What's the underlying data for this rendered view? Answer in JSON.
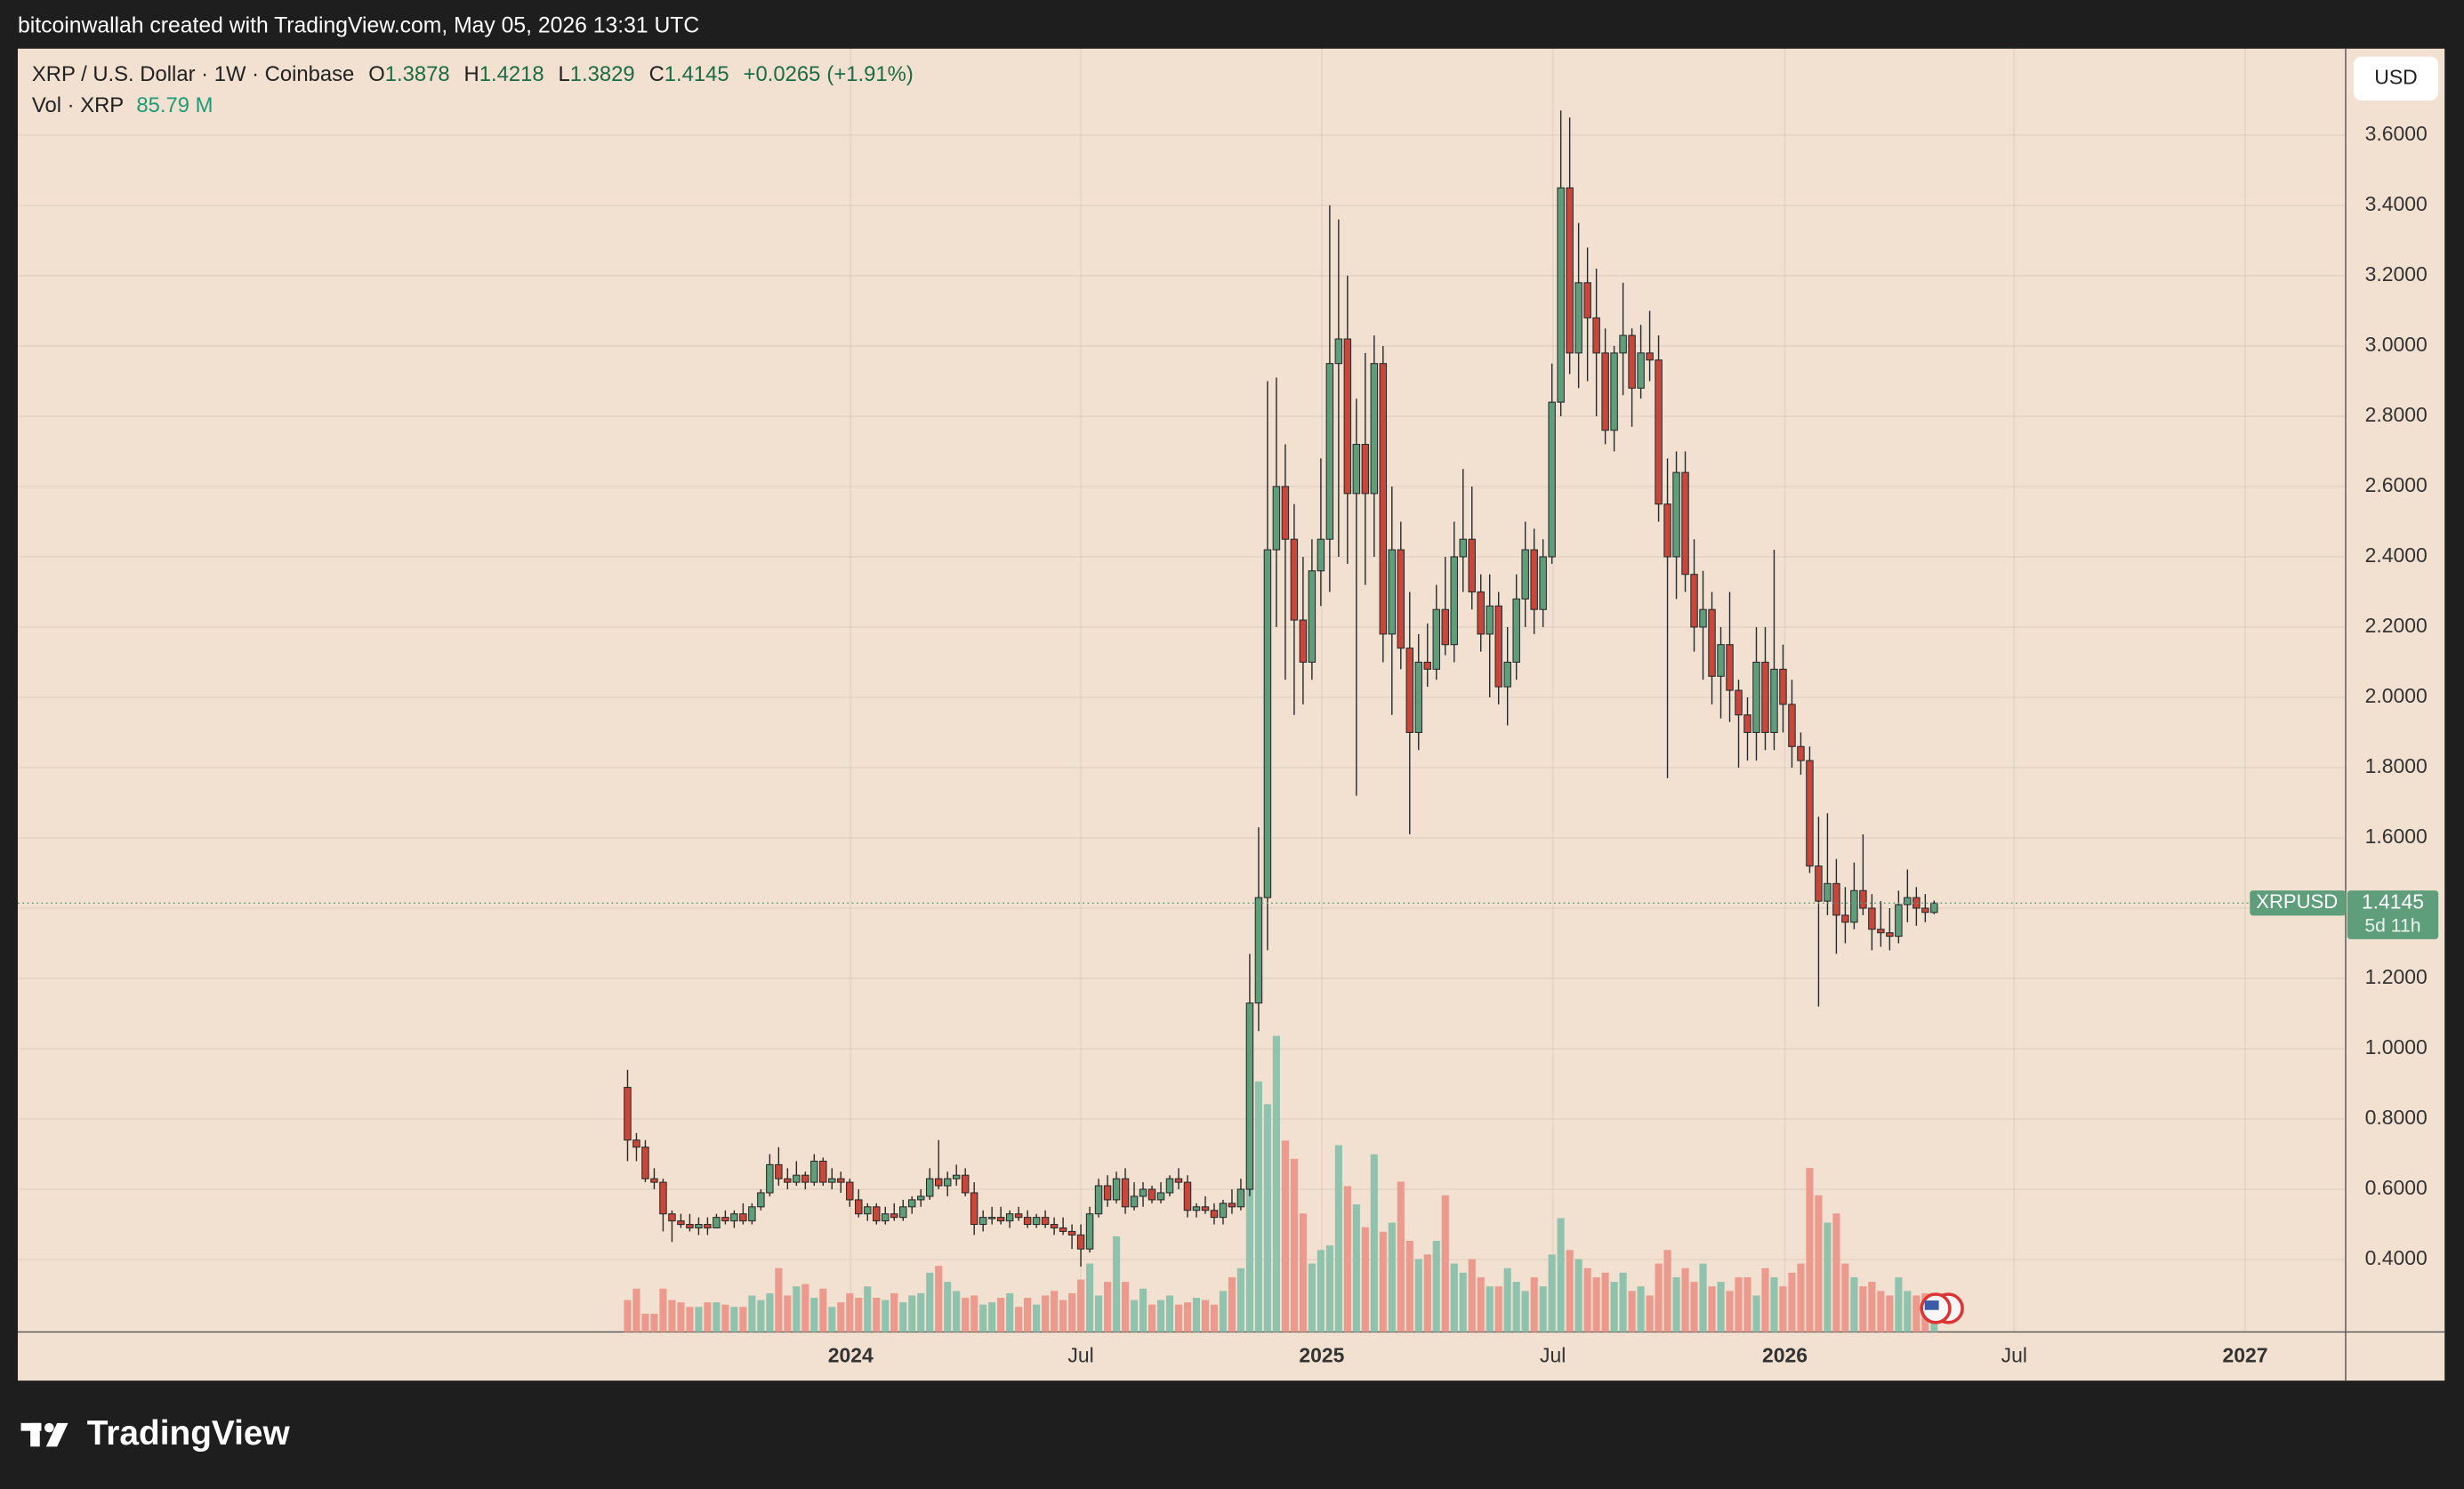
{
  "header": {
    "credit": "bitcoinwallah created with TradingView.com, May 05, 2026 13:31 UTC"
  },
  "footer": {
    "brand": "TradingView"
  },
  "chart_data": {
    "type": "candlestick",
    "title": "XRP / U.S. Dollar · 1W · Coinbase",
    "ohlc_labels": [
      "O",
      "H",
      "L",
      "C"
    ],
    "change": "+0.0265",
    "change_percent": "(+1.91%)",
    "volume_title": "Vol · XRP",
    "volume_last": "85.79 M",
    "symbol": "XRPUSD",
    "countdown": "5d 11h",
    "currency": "USD",
    "ohlc": [
      [
        0.89,
        0.94,
        0.68,
        0.74
      ],
      [
        0.74,
        0.76,
        0.68,
        0.72
      ],
      [
        0.72,
        0.74,
        0.62,
        0.63
      ],
      [
        0.63,
        0.66,
        0.6,
        0.62
      ],
      [
        0.62,
        0.63,
        0.48,
        0.53
      ],
      [
        0.53,
        0.54,
        0.45,
        0.51
      ],
      [
        0.51,
        0.53,
        0.49,
        0.5
      ],
      [
        0.5,
        0.53,
        0.48,
        0.49
      ],
      [
        0.49,
        0.52,
        0.47,
        0.5
      ],
      [
        0.5,
        0.52,
        0.47,
        0.49
      ],
      [
        0.49,
        0.53,
        0.49,
        0.52
      ],
      [
        0.52,
        0.54,
        0.5,
        0.51
      ],
      [
        0.51,
        0.54,
        0.49,
        0.53
      ],
      [
        0.53,
        0.56,
        0.5,
        0.51
      ],
      [
        0.51,
        0.56,
        0.5,
        0.55
      ],
      [
        0.55,
        0.6,
        0.54,
        0.59
      ],
      [
        0.59,
        0.7,
        0.58,
        0.67
      ],
      [
        0.67,
        0.72,
        0.61,
        0.63
      ],
      [
        0.63,
        0.66,
        0.6,
        0.62
      ],
      [
        0.62,
        0.68,
        0.61,
        0.64
      ],
      [
        0.64,
        0.65,
        0.6,
        0.62
      ],
      [
        0.62,
        0.7,
        0.61,
        0.68
      ],
      [
        0.68,
        0.69,
        0.61,
        0.62
      ],
      [
        0.62,
        0.66,
        0.6,
        0.63
      ],
      [
        0.63,
        0.65,
        0.59,
        0.62
      ],
      [
        0.62,
        0.63,
        0.55,
        0.57
      ],
      [
        0.57,
        0.6,
        0.52,
        0.53
      ],
      [
        0.53,
        0.56,
        0.51,
        0.55
      ],
      [
        0.55,
        0.56,
        0.5,
        0.51
      ],
      [
        0.51,
        0.55,
        0.5,
        0.53
      ],
      [
        0.53,
        0.56,
        0.51,
        0.52
      ],
      [
        0.52,
        0.57,
        0.51,
        0.55
      ],
      [
        0.55,
        0.58,
        0.53,
        0.57
      ],
      [
        0.57,
        0.6,
        0.55,
        0.58
      ],
      [
        0.58,
        0.66,
        0.57,
        0.63
      ],
      [
        0.63,
        0.74,
        0.6,
        0.61
      ],
      [
        0.61,
        0.65,
        0.58,
        0.63
      ],
      [
        0.63,
        0.67,
        0.61,
        0.64
      ],
      [
        0.64,
        0.66,
        0.58,
        0.59
      ],
      [
        0.59,
        0.62,
        0.47,
        0.5
      ],
      [
        0.5,
        0.54,
        0.48,
        0.52
      ],
      [
        0.52,
        0.55,
        0.5,
        0.52
      ],
      [
        0.52,
        0.55,
        0.5,
        0.51
      ],
      [
        0.51,
        0.54,
        0.49,
        0.53
      ],
      [
        0.53,
        0.55,
        0.51,
        0.52
      ],
      [
        0.52,
        0.54,
        0.49,
        0.5
      ],
      [
        0.5,
        0.53,
        0.49,
        0.52
      ],
      [
        0.52,
        0.54,
        0.49,
        0.5
      ],
      [
        0.5,
        0.52,
        0.47,
        0.49
      ],
      [
        0.49,
        0.52,
        0.47,
        0.48
      ],
      [
        0.48,
        0.5,
        0.43,
        0.47
      ],
      [
        0.47,
        0.5,
        0.38,
        0.43
      ],
      [
        0.43,
        0.55,
        0.42,
        0.53
      ],
      [
        0.53,
        0.63,
        0.52,
        0.61
      ],
      [
        0.61,
        0.64,
        0.55,
        0.57
      ],
      [
        0.57,
        0.65,
        0.56,
        0.63
      ],
      [
        0.63,
        0.66,
        0.53,
        0.55
      ],
      [
        0.55,
        0.62,
        0.54,
        0.58
      ],
      [
        0.58,
        0.62,
        0.55,
        0.6
      ],
      [
        0.6,
        0.61,
        0.56,
        0.57
      ],
      [
        0.57,
        0.62,
        0.56,
        0.59
      ],
      [
        0.59,
        0.64,
        0.58,
        0.63
      ],
      [
        0.63,
        0.66,
        0.6,
        0.62
      ],
      [
        0.62,
        0.64,
        0.52,
        0.54
      ],
      [
        0.54,
        0.56,
        0.52,
        0.55
      ],
      [
        0.55,
        0.58,
        0.53,
        0.54
      ],
      [
        0.54,
        0.56,
        0.5,
        0.52
      ],
      [
        0.52,
        0.57,
        0.5,
        0.56
      ],
      [
        0.56,
        0.6,
        0.53,
        0.55
      ],
      [
        0.55,
        0.63,
        0.54,
        0.6
      ],
      [
        0.6,
        1.27,
        0.58,
        1.13
      ],
      [
        1.13,
        1.63,
        1.05,
        1.43
      ],
      [
        1.43,
        2.9,
        1.28,
        2.42
      ],
      [
        2.42,
        2.91,
        2.2,
        2.6
      ],
      [
        2.6,
        2.72,
        2.05,
        2.45
      ],
      [
        2.45,
        2.55,
        1.95,
        2.22
      ],
      [
        2.22,
        2.4,
        1.98,
        2.1
      ],
      [
        2.1,
        2.45,
        2.05,
        2.36
      ],
      [
        2.36,
        2.68,
        2.26,
        2.45
      ],
      [
        2.45,
        3.4,
        2.3,
        2.95
      ],
      [
        2.95,
        3.36,
        2.4,
        3.02
      ],
      [
        3.02,
        3.2,
        2.38,
        2.58
      ],
      [
        2.58,
        2.85,
        1.72,
        2.72
      ],
      [
        2.72,
        2.98,
        2.32,
        2.58
      ],
      [
        2.58,
        3.03,
        2.4,
        2.95
      ],
      [
        2.95,
        3.0,
        2.1,
        2.18
      ],
      [
        2.18,
        2.6,
        1.95,
        2.42
      ],
      [
        2.42,
        2.5,
        2.08,
        2.14
      ],
      [
        2.14,
        2.3,
        1.61,
        1.9
      ],
      [
        1.9,
        2.18,
        1.85,
        2.1
      ],
      [
        2.1,
        2.21,
        2.03,
        2.08
      ],
      [
        2.08,
        2.32,
        2.05,
        2.25
      ],
      [
        2.25,
        2.4,
        2.12,
        2.15
      ],
      [
        2.15,
        2.5,
        2.1,
        2.4
      ],
      [
        2.4,
        2.65,
        2.3,
        2.45
      ],
      [
        2.45,
        2.6,
        2.25,
        2.3
      ],
      [
        2.3,
        2.35,
        2.13,
        2.18
      ],
      [
        2.18,
        2.35,
        2.0,
        2.26
      ],
      [
        2.26,
        2.3,
        1.98,
        2.03
      ],
      [
        2.03,
        2.2,
        1.92,
        2.1
      ],
      [
        2.1,
        2.35,
        2.05,
        2.28
      ],
      [
        2.28,
        2.5,
        2.2,
        2.42
      ],
      [
        2.42,
        2.48,
        2.18,
        2.25
      ],
      [
        2.25,
        2.45,
        2.2,
        2.4
      ],
      [
        2.4,
        2.95,
        2.38,
        2.84
      ],
      [
        2.84,
        3.67,
        2.8,
        3.45
      ],
      [
        3.45,
        3.65,
        2.92,
        2.98
      ],
      [
        2.98,
        3.35,
        2.88,
        3.18
      ],
      [
        3.18,
        3.28,
        2.9,
        3.08
      ],
      [
        3.08,
        3.22,
        2.8,
        2.98
      ],
      [
        2.98,
        3.05,
        2.72,
        2.76
      ],
      [
        2.76,
        3.0,
        2.7,
        2.98
      ],
      [
        2.98,
        3.18,
        2.86,
        3.03
      ],
      [
        3.03,
        3.05,
        2.77,
        2.88
      ],
      [
        2.88,
        3.06,
        2.85,
        2.98
      ],
      [
        2.98,
        3.1,
        2.9,
        2.96
      ],
      [
        2.96,
        3.03,
        2.5,
        2.55
      ],
      [
        2.55,
        2.68,
        1.77,
        2.4
      ],
      [
        2.4,
        2.7,
        2.28,
        2.64
      ],
      [
        2.64,
        2.7,
        2.3,
        2.35
      ],
      [
        2.35,
        2.45,
        2.13,
        2.2
      ],
      [
        2.2,
        2.36,
        2.05,
        2.25
      ],
      [
        2.25,
        2.3,
        1.98,
        2.06
      ],
      [
        2.06,
        2.2,
        1.94,
        2.15
      ],
      [
        2.15,
        2.3,
        1.93,
        2.02
      ],
      [
        2.02,
        2.05,
        1.8,
        1.95
      ],
      [
        1.95,
        2.0,
        1.82,
        1.9
      ],
      [
        1.9,
        2.2,
        1.82,
        2.1
      ],
      [
        2.1,
        2.2,
        1.85,
        1.9
      ],
      [
        1.9,
        2.42,
        1.85,
        2.08
      ],
      [
        2.08,
        2.15,
        1.9,
        1.98
      ],
      [
        1.98,
        2.05,
        1.8,
        1.86
      ],
      [
        1.86,
        1.9,
        1.78,
        1.82
      ],
      [
        1.82,
        1.86,
        1.5,
        1.52
      ],
      [
        1.52,
        1.66,
        1.12,
        1.42
      ],
      [
        1.42,
        1.67,
        1.38,
        1.47
      ],
      [
        1.47,
        1.54,
        1.27,
        1.38
      ],
      [
        1.38,
        1.46,
        1.3,
        1.36
      ],
      [
        1.36,
        1.53,
        1.34,
        1.45
      ],
      [
        1.45,
        1.61,
        1.38,
        1.4
      ],
      [
        1.4,
        1.44,
        1.28,
        1.34
      ],
      [
        1.34,
        1.42,
        1.29,
        1.33
      ],
      [
        1.33,
        1.4,
        1.28,
        1.32
      ],
      [
        1.32,
        1.45,
        1.3,
        1.41
      ],
      [
        1.41,
        1.51,
        1.36,
        1.43
      ],
      [
        1.43,
        1.46,
        1.35,
        1.4
      ],
      [
        1.4,
        1.44,
        1.36,
        1.388
      ],
      [
        1.3878,
        1.4218,
        1.3829,
        1.4145
      ]
    ],
    "volume": [
      70,
      95,
      40,
      40,
      95,
      70,
      65,
      55,
      55,
      65,
      65,
      60,
      55,
      55,
      80,
      70,
      85,
      140,
      80,
      100,
      105,
      75,
      95,
      55,
      65,
      85,
      75,
      100,
      75,
      70,
      85,
      65,
      80,
      85,
      130,
      145,
      110,
      90,
      75,
      80,
      60,
      65,
      75,
      85,
      55,
      75,
      60,
      80,
      90,
      70,
      85,
      115,
      150,
      80,
      110,
      210,
      110,
      70,
      95,
      60,
      70,
      80,
      60,
      65,
      75,
      70,
      60,
      90,
      120,
      140,
      700,
      550,
      500,
      650,
      420,
      380,
      260,
      150,
      180,
      190,
      410,
      320,
      280,
      230,
      390,
      220,
      240,
      330,
      200,
      160,
      170,
      200,
      300,
      150,
      130,
      160,
      120,
      100,
      100,
      140,
      110,
      90,
      120,
      100,
      170,
      250,
      180,
      160,
      140,
      120,
      130,
      110,
      130,
      90,
      100,
      80,
      150,
      180,
      120,
      140,
      110,
      150,
      100,
      110,
      90,
      120,
      120,
      80,
      140,
      120,
      100,
      130,
      150,
      360,
      300,
      240,
      260,
      150,
      120,
      100,
      110,
      90,
      80,
      120,
      90,
      80,
      85,
      85.79
    ],
    "xlim": [
      -68.6,
      193.3
    ],
    "xticks": [
      {
        "value": 25.1,
        "label": "2024"
      },
      {
        "value": 51.0,
        "label": "Jul"
      },
      {
        "value": 78.1,
        "label": "2025"
      },
      {
        "value": 104.1,
        "label": "Jul"
      },
      {
        "value": 130.2,
        "label": "2026"
      },
      {
        "value": 156.0,
        "label": "Jul"
      },
      {
        "value": 182.0,
        "label": "2027"
      }
    ],
    "ylim": [
      0.194,
      3.846
    ],
    "yticks": [
      {
        "value": 0.4,
        "label": "0.4000"
      },
      {
        "value": 0.6,
        "label": "0.6000"
      },
      {
        "value": 0.8,
        "label": "0.8000"
      },
      {
        "value": 1.0,
        "label": "1.0000"
      },
      {
        "value": 1.2,
        "label": "1.2000"
      },
      {
        "value": 1.4,
        "label": "1.4000"
      },
      {
        "value": 1.6,
        "label": "1.6000"
      },
      {
        "value": 1.8,
        "label": "1.8000"
      },
      {
        "value": 2.0,
        "label": "2.0000"
      },
      {
        "value": 2.2,
        "label": "2.2000"
      },
      {
        "value": 2.4,
        "label": "2.4000"
      },
      {
        "value": 2.6,
        "label": "2.6000"
      },
      {
        "value": 2.8,
        "label": "2.8000"
      },
      {
        "value": 3.0,
        "label": "3.0000"
      },
      {
        "value": 3.2,
        "label": "3.2000"
      },
      {
        "value": 3.4,
        "label": "3.4000"
      },
      {
        "value": 3.6,
        "label": "3.6000"
      }
    ],
    "grid": true,
    "colors": {
      "up": "#5e9e7b",
      "down": "#c8473a",
      "volume_up": "#8fc3ae",
      "volume_down": "#ec9a8e",
      "background": "#f2e1d0",
      "volume_text": "#1f9a78"
    }
  }
}
